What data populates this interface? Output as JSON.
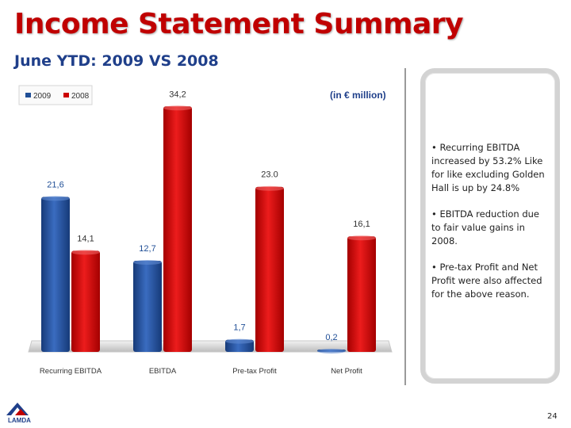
{
  "title": "Income Statement Summary",
  "subtitle": "June YTD: 2009 VS 2008",
  "unit_note": "(in € million)",
  "bullets": [
    "• Recurring EBITDA increased by 53.2% Like for like excluding Golden Hall is up by 24.8%",
    "• EBITDA reduction due to fair value gains in 2008.",
    "• Pre-tax Profit and Net Profit were also affected for the above reason."
  ],
  "page_number": "24",
  "logo_text": "LAMDA",
  "colors": {
    "series_2009": "#1f4e96",
    "series_2008": "#cc0000",
    "title": "#c00000",
    "subtitle": "#1f3f8a"
  },
  "chart_data": {
    "type": "bar",
    "categories": [
      "Recurring EBITDA",
      "EBITDA",
      "Pre-tax Profit",
      "Net Profit"
    ],
    "series": [
      {
        "name": "2009",
        "values": [
          21.6,
          12.7,
          1.7,
          0.2
        ],
        "labels": [
          "21,6",
          "12,7",
          "1,7",
          "0,2"
        ]
      },
      {
        "name": "2008",
        "values": [
          14.1,
          34.2,
          23.0,
          16.1
        ],
        "labels": [
          "14,1",
          "34,2",
          "23.0",
          "16,1"
        ]
      }
    ],
    "ylim": [
      0,
      36
    ],
    "legend_position": "top-left",
    "grid": false
  }
}
